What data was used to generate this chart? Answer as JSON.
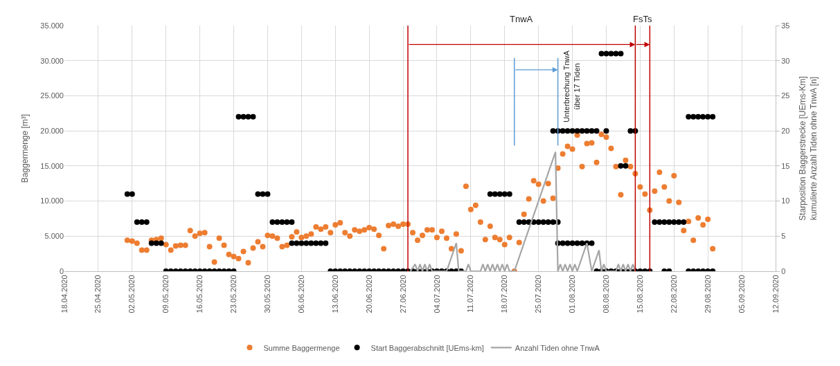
{
  "chart_data": {
    "type": "scatter",
    "ylabel": "Baggermenge [m³]",
    "y2label": "Starposition Baggerstrecke [UEms-Km]\nkumulierte Anzahl Tiden ohne TnwA [n]",
    "xlim": [
      "2020-04-18",
      "2020-09-12"
    ],
    "xticks": [
      {
        "value": "2020-04-18",
        "label": "18.04.2020"
      },
      {
        "value": "2020-04-25",
        "label": "25.04.2020"
      },
      {
        "value": "2020-05-02",
        "label": "02.05.2020"
      },
      {
        "value": "2020-05-09",
        "label": "09.05.2020"
      },
      {
        "value": "2020-05-16",
        "label": "16.05.2020"
      },
      {
        "value": "2020-05-23",
        "label": "23.05.2020"
      },
      {
        "value": "2020-05-30",
        "label": "30.05.2020"
      },
      {
        "value": "2020-06-06",
        "label": "06.06.2020"
      },
      {
        "value": "2020-06-13",
        "label": "13.06.2020"
      },
      {
        "value": "2020-06-20",
        "label": "20.06.2020"
      },
      {
        "value": "2020-06-27",
        "label": "27.06.2020"
      },
      {
        "value": "2020-07-04",
        "label": "04.07.2020"
      },
      {
        "value": "2020-07-11",
        "label": "11.07.2020"
      },
      {
        "value": "2020-07-18",
        "label": "18.07.2020"
      },
      {
        "value": "2020-07-25",
        "label": "25.07.2020"
      },
      {
        "value": "2020-08-01",
        "label": "01.08.2020"
      },
      {
        "value": "2020-08-08",
        "label": "08.08.2020"
      },
      {
        "value": "2020-08-15",
        "label": "15.08.2020"
      },
      {
        "value": "2020-08-22",
        "label": "22.08.2020"
      },
      {
        "value": "2020-08-29",
        "label": "29.08.2020"
      },
      {
        "value": "2020-09-05",
        "label": "05.09.2020"
      },
      {
        "value": "2020-09-12",
        "label": "12.09.2020"
      }
    ],
    "ylim": [
      0,
      35000
    ],
    "yticks": [
      0,
      {
        "value": 5000,
        "label": "5.000"
      },
      {
        "value": 10000,
        "label": "10.000"
      },
      {
        "value": 15000,
        "label": "15.000"
      },
      {
        "value": 20000,
        "label": "20.000"
      },
      {
        "value": 25000,
        "label": "25.000"
      },
      {
        "value": 30000,
        "label": "30.000"
      },
      {
        "value": 35000,
        "label": "35.000"
      }
    ],
    "y2lim": [
      0,
      35
    ],
    "y2ticks": [
      0,
      5,
      10,
      15,
      20,
      25,
      30,
      35
    ],
    "grid": true,
    "legend": "bottom",
    "marker": "circle",
    "series": [
      {
        "name": "Summe Baggermenge",
        "color": "#ed7d31",
        "x": [
          "2020-05-01",
          "2020-05-02",
          "2020-05-03",
          "2020-05-04",
          "2020-05-05",
          "2020-05-06",
          "2020-05-07",
          "2020-05-08",
          "2020-05-09",
          "2020-05-10",
          "2020-05-11",
          "2020-05-12",
          "2020-05-13",
          "2020-05-14",
          "2020-05-15",
          "2020-05-16",
          "2020-05-17",
          "2020-05-18",
          "2020-05-19",
          "2020-05-20",
          "2020-05-21",
          "2020-05-22",
          "2020-05-23",
          "2020-05-24",
          "2020-05-25",
          "2020-05-26",
          "2020-05-27",
          "2020-05-28",
          "2020-05-29",
          "2020-05-30",
          "2020-05-31",
          "2020-06-01",
          "2020-06-02",
          "2020-06-03",
          "2020-06-04",
          "2020-06-05",
          "2020-06-06",
          "2020-06-07",
          "2020-06-08",
          "2020-06-09",
          "2020-06-10",
          "2020-06-11",
          "2020-06-12",
          "2020-06-13",
          "2020-06-14",
          "2020-06-15",
          "2020-06-16",
          "2020-06-17",
          "2020-06-18",
          "2020-06-19",
          "2020-06-20",
          "2020-06-21",
          "2020-06-22",
          "2020-06-23",
          "2020-06-24",
          "2020-06-25",
          "2020-06-26",
          "2020-06-27",
          "2020-06-28",
          "2020-06-29",
          "2020-06-30",
          "2020-07-01",
          "2020-07-02",
          "2020-07-03",
          "2020-07-04",
          "2020-07-05",
          "2020-07-06",
          "2020-07-07",
          "2020-07-08",
          "2020-07-09",
          "2020-07-10",
          "2020-07-11",
          "2020-07-12",
          "2020-07-13",
          "2020-07-14",
          "2020-07-15",
          "2020-07-16",
          "2020-07-17",
          "2020-07-18",
          "2020-07-19",
          "2020-07-20",
          "2020-07-21",
          "2020-07-22",
          "2020-07-23",
          "2020-07-24",
          "2020-07-25",
          "2020-07-26",
          "2020-07-27",
          "2020-07-28",
          "2020-07-29",
          "2020-07-30",
          "2020-07-31",
          "2020-08-01",
          "2020-08-02",
          "2020-08-03",
          "2020-08-04",
          "2020-08-05",
          "2020-08-06",
          "2020-08-07",
          "2020-08-08",
          "2020-08-09",
          "2020-08-10",
          "2020-08-11",
          "2020-08-12",
          "2020-08-13",
          "2020-08-14",
          "2020-08-15",
          "2020-08-16",
          "2020-08-17",
          "2020-08-18",
          "2020-08-19",
          "2020-08-20",
          "2020-08-21",
          "2020-08-22",
          "2020-08-23",
          "2020-08-24",
          "2020-08-25",
          "2020-08-26",
          "2020-08-27",
          "2020-08-28",
          "2020-08-29",
          "2020-08-30"
        ],
        "values": [
          4400,
          4300,
          4000,
          3000,
          3000,
          4400,
          4500,
          4700,
          3800,
          3000,
          3600,
          3700,
          3700,
          5800,
          5000,
          5400,
          5500,
          3500,
          1300,
          4700,
          3700,
          2400,
          2100,
          1800,
          2800,
          1200,
          3300,
          4200,
          3500,
          5100,
          5000,
          4700,
          3500,
          3700,
          4900,
          5600,
          4800,
          5000,
          5300,
          6300,
          6000,
          6300,
          5500,
          6600,
          6900,
          5500,
          5000,
          5900,
          5700,
          5900,
          6200,
          6000,
          5100,
          3200,
          6500,
          6700,
          6400,
          6700,
          6700,
          5500,
          4400,
          5100,
          5900,
          5900,
          4800,
          5700,
          4700,
          3200,
          5300,
          2900,
          12100,
          8800,
          9400,
          7000,
          4500,
          6400,
          4800,
          4500,
          3800,
          4800,
          0,
          4100,
          8100,
          10300,
          12900,
          12400,
          10000,
          12500,
          10400,
          14700,
          16700,
          17800,
          17400,
          19400,
          14900,
          18200,
          18300,
          15500,
          19500,
          19100,
          17500,
          14900,
          10900,
          15800,
          14900,
          13900,
          12000,
          11000,
          8700,
          11400,
          14100,
          12000,
          10000,
          13600,
          9800,
          5800,
          7100,
          4400,
          7600,
          6600,
          7400,
          3200
        ]
      },
      {
        "name": "Start Baggerabschnitt [UEms-km]",
        "color": "#000000",
        "axis": "y2",
        "x": [
          "2020-05-01",
          "2020-05-02",
          "2020-05-03",
          "2020-05-04",
          "2020-05-05",
          "2020-05-06",
          "2020-05-07",
          "2020-05-08",
          "2020-05-09",
          "2020-05-10",
          "2020-05-11",
          "2020-05-12",
          "2020-05-13",
          "2020-05-14",
          "2020-05-15",
          "2020-05-16",
          "2020-05-17",
          "2020-05-18",
          "2020-05-19",
          "2020-05-20",
          "2020-05-21",
          "2020-05-22",
          "2020-05-23",
          "2020-05-24",
          "2020-05-25",
          "2020-05-26",
          "2020-05-27",
          "2020-05-28",
          "2020-05-29",
          "2020-05-30",
          "2020-05-31",
          "2020-06-01",
          "2020-06-02",
          "2020-06-03",
          "2020-06-04",
          "2020-06-04",
          "2020-06-05",
          "2020-06-06",
          "2020-06-07",
          "2020-06-08",
          "2020-06-09",
          "2020-06-10",
          "2020-06-11",
          "2020-06-12",
          "2020-06-13",
          "2020-06-14",
          "2020-06-15",
          "2020-06-16",
          "2020-06-17",
          "2020-06-18",
          "2020-06-19",
          "2020-06-20",
          "2020-06-21",
          "2020-06-22",
          "2020-06-23",
          "2020-06-24",
          "2020-06-25",
          "2020-06-26",
          "2020-06-27",
          "2020-06-28",
          "2020-06-29",
          "2020-06-30",
          "2020-07-01",
          "2020-07-02",
          "2020-07-03",
          "2020-07-04",
          "2020-07-05",
          "2020-07-06",
          "2020-07-07",
          "2020-07-08",
          "2020-07-09",
          "2020-07-15",
          "2020-07-16",
          "2020-07-17",
          "2020-07-18",
          "2020-07-19",
          "2020-07-21",
          "2020-07-22",
          "2020-07-23",
          "2020-07-24",
          "2020-07-25",
          "2020-07-26",
          "2020-07-27",
          "2020-07-28",
          "2020-07-29",
          "2020-07-28",
          "2020-07-29",
          "2020-07-30",
          "2020-07-31",
          "2020-08-01",
          "2020-08-02",
          "2020-08-03",
          "2020-08-04",
          "2020-08-05",
          "2020-08-06",
          "2020-08-08",
          "2020-08-13",
          "2020-08-14",
          "2020-07-29",
          "2020-07-30",
          "2020-07-31",
          "2020-08-01",
          "2020-08-02",
          "2020-08-03",
          "2020-08-04",
          "2020-08-05",
          "2020-08-07",
          "2020-08-08",
          "2020-08-09",
          "2020-08-10",
          "2020-08-11",
          "2020-08-11",
          "2020-08-12",
          "2020-08-06",
          "2020-08-07",
          "2020-08-08",
          "2020-08-09",
          "2020-08-10",
          "2020-08-11",
          "2020-08-12",
          "2020-08-13",
          "2020-08-14",
          "2020-08-15",
          "2020-08-16",
          "2020-08-17",
          "2020-08-20",
          "2020-08-21",
          "2020-08-25",
          "2020-08-26",
          "2020-08-27",
          "2020-08-28",
          "2020-08-29",
          "2020-08-30",
          "2020-08-18",
          "2020-08-19",
          "2020-08-20",
          "2020-08-21",
          "2020-08-22",
          "2020-08-23",
          "2020-08-24",
          "2020-08-25",
          "2020-08-26",
          "2020-08-27",
          "2020-08-28",
          "2020-08-29",
          "2020-08-30"
        ],
        "values": [
          11,
          11,
          7,
          7,
          7,
          4,
          4,
          4,
          0,
          0,
          0,
          0,
          0,
          0,
          0,
          0,
          0,
          0,
          0,
          0,
          0,
          0,
          0,
          22,
          22,
          22,
          22,
          11,
          11,
          11,
          7,
          7,
          7,
          7,
          7,
          4,
          4,
          4,
          4,
          4,
          4,
          4,
          4,
          0,
          0,
          0,
          0,
          0,
          0,
          0,
          0,
          0,
          0,
          0,
          0,
          0,
          0,
          0,
          0,
          0,
          0,
          0,
          0,
          0,
          0,
          0,
          0,
          0,
          0,
          0,
          0,
          11,
          11,
          11,
          11,
          11,
          7,
          7,
          7,
          7,
          7,
          7,
          7,
          7,
          7,
          20,
          20,
          20,
          20,
          20,
          20,
          20,
          20,
          20,
          20,
          20,
          20,
          20,
          4,
          4,
          4,
          4,
          4,
          4,
          4,
          4,
          31,
          31,
          31,
          31,
          31,
          15,
          15,
          0,
          0,
          0,
          0,
          0,
          0,
          0,
          0,
          0,
          0,
          0,
          0,
          0,
          0,
          0,
          0,
          0,
          0,
          0,
          0,
          7,
          7,
          7,
          7,
          7,
          7,
          7,
          22,
          22,
          22,
          22,
          22,
          22
        ]
      },
      {
        "name": "Anzahl Tiden ohne TnwA",
        "color": "#a5a5a5",
        "type": "line",
        "axis": "y2",
        "marker": "none",
        "x": [
          "2020-06-28T12:00",
          "2020-06-29T12:00",
          "2020-06-30",
          "2020-06-30T12:00",
          "2020-07-01",
          "2020-07-01T12:00",
          "2020-07-02",
          "2020-07-02T12:00",
          "2020-07-03",
          "2020-07-06",
          "2020-07-08",
          "2020-07-08T12:00",
          "2020-07-10",
          "2020-07-10T12:00",
          "2020-07-11",
          "2020-07-13",
          "2020-07-13T12:00",
          "2020-07-14",
          "2020-07-14T12:00",
          "2020-07-15",
          "2020-07-15T12:00",
          "2020-07-16",
          "2020-07-16T12:00",
          "2020-07-17",
          "2020-07-17T12:00",
          "2020-07-18",
          "2020-07-18T12:00",
          "2020-07-19",
          "2020-07-20",
          "2020-07-28T12:00",
          "2020-07-29",
          "2020-07-29T12:00",
          "2020-07-30",
          "2020-07-30T12:00",
          "2020-07-31",
          "2020-07-31T12:00",
          "2020-08-01",
          "2020-08-01T12:00",
          "2020-08-02",
          "2020-08-04",
          "2020-08-05",
          "2020-08-06T12:00",
          "2020-08-07",
          "2020-08-07T12:00",
          "2020-08-08",
          "2020-08-10",
          "2020-08-10T12:00",
          "2020-08-11",
          "2020-08-11T12:00",
          "2020-08-12",
          "2020-08-12T12:00",
          "2020-08-13",
          "2020-08-13T12:00",
          "2020-08-14"
        ],
        "values": [
          0,
          1,
          0,
          1,
          0,
          1,
          0,
          1,
          0,
          0,
          4,
          0,
          0,
          1,
          0,
          0,
          1,
          0,
          1,
          0,
          1,
          0,
          1,
          0,
          1,
          0,
          1,
          0,
          0,
          17,
          0,
          1,
          0,
          1,
          0,
          1,
          0,
          1,
          0,
          4,
          0,
          3,
          0,
          1,
          0,
          0,
          1,
          0,
          1,
          0,
          1,
          0,
          1,
          0
        ]
      }
    ],
    "ref_lines": [
      {
        "axis": "x",
        "value": "2020-06-28",
        "color": "#c00000"
      },
      {
        "axis": "x",
        "value": "2020-08-14",
        "color": "#c00000"
      },
      {
        "axis": "x",
        "value": "2020-08-17",
        "color": "#c00000"
      },
      {
        "axis": "x",
        "value": "2020-07-20",
        "color": "#5b9bd5"
      },
      {
        "axis": "x",
        "value": "2020-07-29",
        "color": "#5b9bd5"
      }
    ],
    "annotations": [
      "TnwA",
      "FsTs",
      "Unterbrechung TnwA\nüber 17 Tiden"
    ]
  }
}
